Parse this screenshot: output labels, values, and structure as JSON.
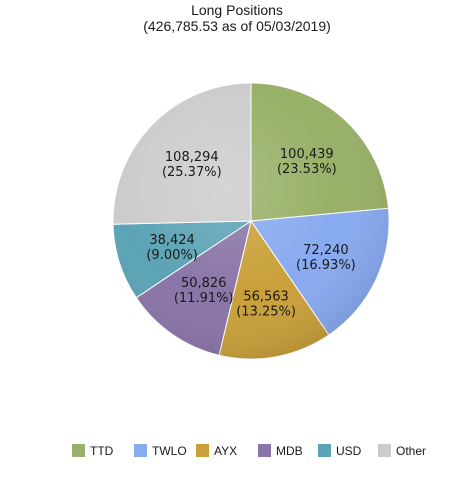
{
  "chart_data": {
    "type": "pie",
    "title": "Long Positions",
    "subtitle": "(426,785.53 as of 05/03/2019)",
    "slices": [
      {
        "category": "TTD",
        "value": 100439,
        "value_label": "100,439",
        "percent_label": "(23.53%)",
        "color": "#98b067"
      },
      {
        "category": "TWLO",
        "value": 72240,
        "value_label": "72,240",
        "percent_label": "(16.93%)",
        "color": "#88aaf0"
      },
      {
        "category": "AYX",
        "value": 56563,
        "value_label": "56,563",
        "percent_label": "(13.25%)",
        "color": "#c9a03a"
      },
      {
        "category": "MDB",
        "value": 50826,
        "value_label": "50,826",
        "percent_label": "(11.91%)",
        "color": "#8a75a8"
      },
      {
        "category": "USD",
        "value": 38424,
        "value_label": "38,424",
        "percent_label": "(9.00%)",
        "color": "#5ba3b5"
      },
      {
        "category": "Other",
        "value": 108294,
        "value_label": "108,294",
        "percent_label": "(25.37%)",
        "color": "#cccccc"
      }
    ],
    "legend_position": "bottom",
    "start_angle": "12 o'clock",
    "direction": "clockwise"
  }
}
